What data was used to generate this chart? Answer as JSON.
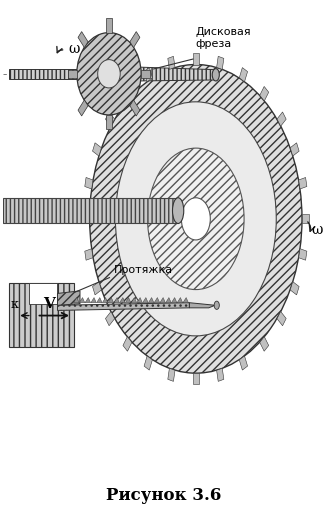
{
  "title": "Рисунок 3.6",
  "title_fontsize": 12,
  "title_fontweight": "bold",
  "background_color": "#ffffff",
  "figsize": [
    3.28,
    5.2
  ],
  "dpi": 100,
  "label_disk": "Дисковая\nфреза",
  "label_protazhka": "Протяжка",
  "label_omega1": "ω",
  "label_omega2": "ω",
  "label_V": "V",
  "label_k": "κ"
}
